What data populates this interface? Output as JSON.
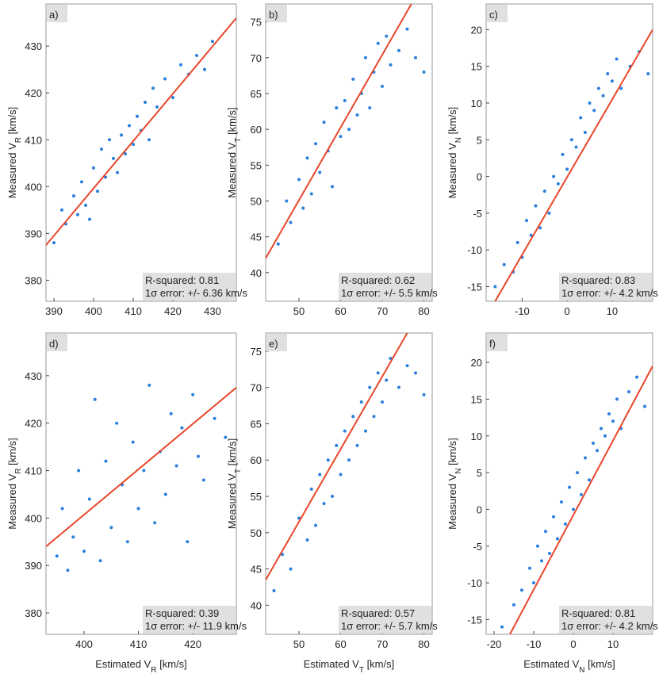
{
  "chart_data": [
    {
      "type": "scatter",
      "panel_label": "a)",
      "ylabel": {
        "text": "Measured V",
        "sub": "R",
        "unit": " [km/s]"
      },
      "xlim": [
        388,
        436
      ],
      "ylim": [
        375.5,
        439
      ],
      "xticks": [
        390,
        400,
        410,
        420,
        430
      ],
      "yticks": [
        380,
        390,
        400,
        410,
        420,
        430
      ],
      "color": "#2a7fdc",
      "x": [
        390,
        392,
        393,
        395,
        396,
        397,
        398,
        399,
        400,
        401,
        402,
        403,
        404,
        405,
        406,
        407,
        408,
        409,
        410,
        411,
        412,
        413,
        414,
        415,
        416,
        418,
        420,
        422,
        424,
        426,
        428,
        430
      ],
      "values": [
        388,
        395,
        392,
        398,
        394,
        401,
        396,
        393,
        404,
        399,
        408,
        402,
        410,
        406,
        403,
        411,
        407,
        413,
        409,
        415,
        412,
        418,
        410,
        421,
        417,
        423,
        419,
        426,
        424,
        428,
        425,
        431
      ],
      "fit": {
        "color": "#e8462a",
        "x": [
          388,
          436
        ],
        "values": [
          387.5,
          436
        ]
      },
      "annotations": [
        "R-squared: 0.81",
        "1σ error: +/- 6.36 km/s"
      ]
    },
    {
      "type": "scatter",
      "panel_label": "b)",
      "ylabel": {
        "text": "Measured V",
        "sub": "T",
        "unit": " [km/s]"
      },
      "xlim": [
        42,
        82
      ],
      "ylim": [
        36,
        77.5
      ],
      "xticks": [
        50,
        60,
        70,
        80
      ],
      "yticks": [
        40,
        45,
        50,
        55,
        60,
        65,
        70,
        75
      ],
      "color": "#2a7fdc",
      "x": [
        45,
        47,
        48,
        50,
        51,
        52,
        53,
        54,
        55,
        56,
        57,
        58,
        59,
        60,
        61,
        62,
        63,
        64,
        65,
        66,
        67,
        68,
        69,
        70,
        71,
        72,
        74,
        76,
        78,
        80
      ],
      "values": [
        44,
        50,
        47,
        53,
        49,
        56,
        51,
        58,
        54,
        61,
        57,
        52,
        63,
        59,
        64,
        60,
        67,
        62,
        65,
        70,
        63,
        68,
        72,
        66,
        73,
        69,
        71,
        74,
        70,
        68
      ],
      "fit": {
        "color": "#e8462a",
        "x": [
          42,
          77
        ],
        "values": [
          42,
          77.5
        ]
      },
      "annotations": [
        "R-squared: 0.62",
        "1σ error: +/- 5.5 km/s"
      ]
    },
    {
      "type": "scatter",
      "panel_label": "c)",
      "ylabel": {
        "text": "Measured V",
        "sub": "N",
        "unit": " [km/s]"
      },
      "xlim": [
        -18,
        19
      ],
      "ylim": [
        -17,
        23.5
      ],
      "xticks": [
        -10,
        0,
        10
      ],
      "yticks": [
        -15,
        -10,
        -5,
        0,
        5,
        10,
        15,
        20
      ],
      "color": "#2a7fdc",
      "x": [
        -16,
        -14,
        -12,
        -11,
        -10,
        -9,
        -8,
        -7,
        -6,
        -5,
        -4,
        -3,
        -2,
        -1,
        0,
        1,
        2,
        3,
        4,
        5,
        6,
        7,
        8,
        9,
        10,
        11,
        12,
        14,
        16,
        18
      ],
      "values": [
        -15,
        -12,
        -13,
        -9,
        -11,
        -6,
        -8,
        -4,
        -7,
        -2,
        -5,
        0,
        -1,
        3,
        1,
        5,
        4,
        8,
        6,
        10,
        9,
        12,
        11,
        14,
        13,
        16,
        12,
        15,
        17,
        14
      ],
      "fit": {
        "color": "#e8462a",
        "x": [
          -16,
          19
        ],
        "values": [
          -17,
          20
        ]
      },
      "annotations": [
        "R-squared: 0.83",
        "1σ error: +/- 4.2 km/s"
      ]
    },
    {
      "type": "scatter",
      "panel_label": "d)",
      "ylabel": {
        "text": "Measured V",
        "sub": "R",
        "unit": " [km/s]"
      },
      "xlabel": {
        "text": "Estimated V",
        "sub": "R",
        "unit": " [km/s]"
      },
      "xlim": [
        393,
        428
      ],
      "ylim": [
        375.5,
        439
      ],
      "xticks": [
        400,
        410,
        420
      ],
      "yticks": [
        380,
        390,
        400,
        410,
        420,
        430
      ],
      "color": "#2a7fdc",
      "x": [
        395,
        396,
        397,
        398,
        399,
        400,
        401,
        402,
        403,
        404,
        405,
        406,
        407,
        408,
        409,
        410,
        411,
        412,
        413,
        414,
        415,
        416,
        417,
        418,
        419,
        420,
        421,
        422,
        424,
        426
      ],
      "values": [
        392,
        402,
        389,
        396,
        410,
        393,
        404,
        425,
        391,
        412,
        398,
        420,
        407,
        395,
        416,
        402,
        410,
        428,
        399,
        414,
        405,
        422,
        411,
        419,
        395,
        426,
        413,
        408,
        421,
        417
      ],
      "fit": {
        "color": "#e8462a",
        "x": [
          393,
          428
        ],
        "values": [
          394,
          427.5
        ]
      },
      "annotations": [
        "R-squared: 0.39",
        "1σ error: +/- 11.9 km/s"
      ]
    },
    {
      "type": "scatter",
      "panel_label": "e)",
      "ylabel": {
        "text": "Measured V",
        "sub": "T",
        "unit": " [km/s]"
      },
      "xlabel": {
        "text": "Estimated V",
        "sub": "T",
        "unit": " [km/s]"
      },
      "xlim": [
        42,
        82
      ],
      "ylim": [
        36,
        77.5
      ],
      "xticks": [
        50,
        60,
        70,
        80
      ],
      "yticks": [
        40,
        45,
        50,
        55,
        60,
        65,
        70,
        75
      ],
      "color": "#2a7fdc",
      "x": [
        44,
        46,
        48,
        50,
        52,
        53,
        54,
        55,
        56,
        57,
        58,
        59,
        60,
        61,
        62,
        63,
        64,
        65,
        66,
        67,
        68,
        69,
        70,
        71,
        72,
        74,
        76,
        78,
        80
      ],
      "values": [
        42,
        47,
        45,
        52,
        49,
        56,
        51,
        58,
        54,
        60,
        55,
        62,
        58,
        64,
        60,
        66,
        62,
        68,
        64,
        70,
        66,
        72,
        68,
        71,
        74,
        70,
        73,
        72,
        69
      ],
      "fit": {
        "color": "#e8462a",
        "x": [
          42,
          76
        ],
        "values": [
          43.5,
          77.5
        ]
      },
      "annotations": [
        "R-squared: 0.57",
        "1σ error: +/- 5.7 km/s"
      ]
    },
    {
      "type": "scatter",
      "panel_label": "f)",
      "ylabel": {
        "text": "Measured V",
        "sub": "N",
        "unit": " [km/s]"
      },
      "xlabel": {
        "text": "Estimated V",
        "sub": "N",
        "unit": " [km/s]"
      },
      "xlim": [
        -22,
        20
      ],
      "ylim": [
        -17,
        24
      ],
      "xticks": [
        -20,
        -10,
        0,
        10
      ],
      "yticks": [
        -15,
        -10,
        -5,
        0,
        5,
        10,
        15,
        20
      ],
      "color": "#2a7fdc",
      "x": [
        -18,
        -15,
        -13,
        -11,
        -10,
        -9,
        -8,
        -7,
        -6,
        -5,
        -4,
        -3,
        -2,
        -1,
        0,
        1,
        2,
        3,
        4,
        5,
        6,
        7,
        8,
        9,
        10,
        11,
        12,
        14,
        16,
        18
      ],
      "values": [
        -16,
        -13,
        -11,
        -8,
        -10,
        -5,
        -7,
        -3,
        -6,
        -1,
        -4,
        1,
        -2,
        3,
        0,
        5,
        2,
        7,
        4,
        9,
        8,
        11,
        10,
        13,
        12,
        15,
        11,
        16,
        18,
        14
      ],
      "fit": {
        "color": "#e8462a",
        "x": [
          -16,
          20
        ],
        "values": [
          -17,
          19.5
        ]
      },
      "annotations": [
        "R-squared: 0.81",
        "1σ error: +/- 4.2 km/s"
      ]
    }
  ]
}
